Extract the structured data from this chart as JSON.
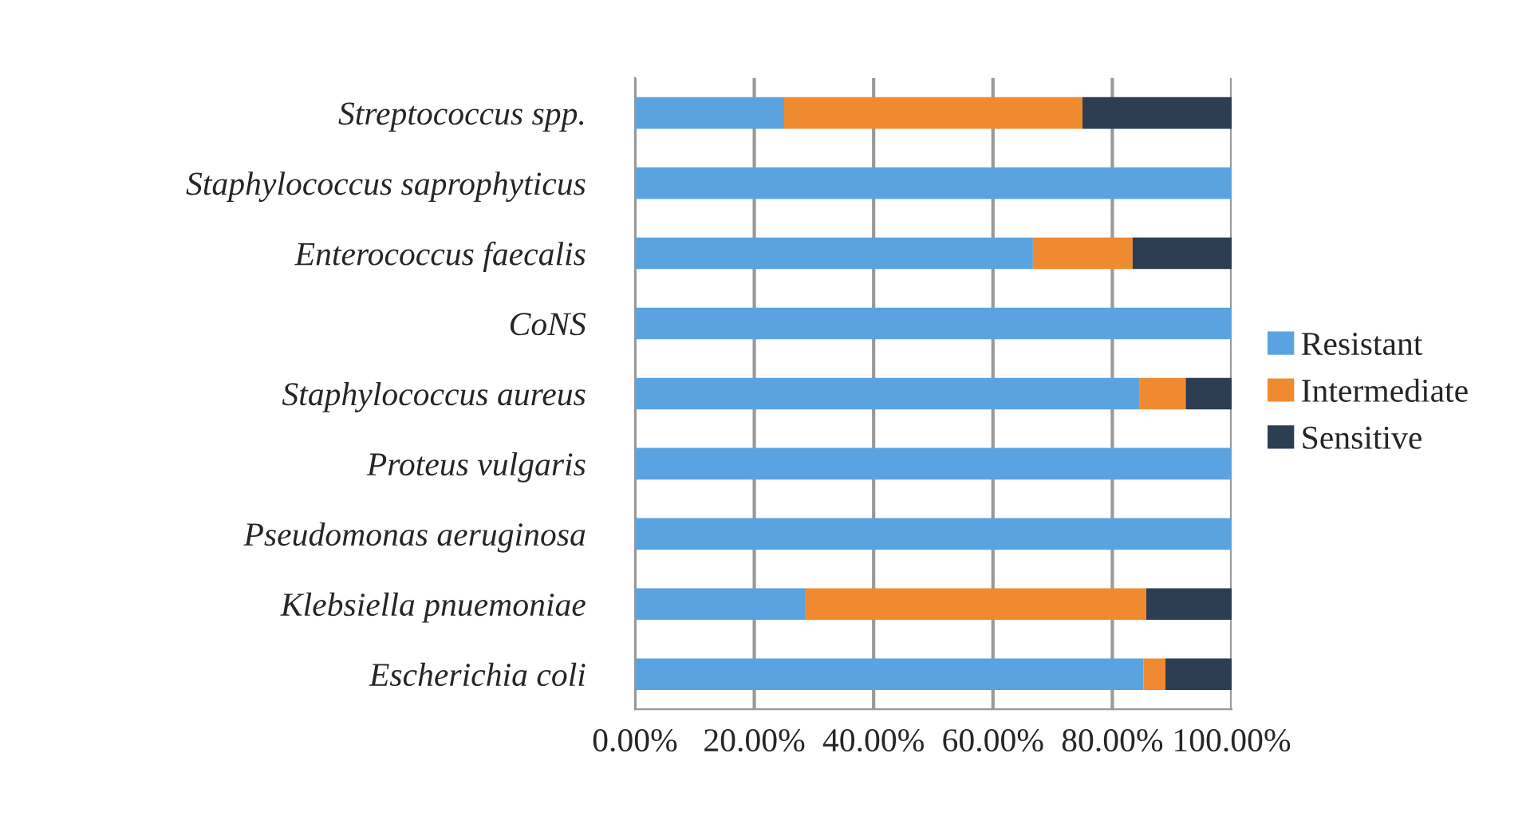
{
  "chart_data": {
    "type": "bar",
    "orientation": "horizontal",
    "stacked": true,
    "categories": [
      "Streptococcus spp.",
      "Staphylococcus saprophyticus",
      "Enterococcus faecalis",
      "CoNS",
      "Staphylococcus aureus",
      "Proteus vulgaris",
      "Pseudomonas aeruginosa",
      "Klebsiella pnuemoniae",
      "Escherichia coli"
    ],
    "series": [
      {
        "name": "Resistant",
        "color": "#5ba3e0",
        "values": [
          25,
          100,
          66.7,
          100,
          84.6,
          100,
          100,
          28.6,
          85.2
        ]
      },
      {
        "name": "Intermediate",
        "color": "#f08a30",
        "values": [
          50,
          0,
          16.7,
          0,
          7.7,
          0,
          0,
          57.1,
          3.7
        ]
      },
      {
        "name": "Sensitive",
        "color": "#2e3e52",
        "values": [
          25,
          0,
          16.6,
          0,
          7.7,
          0,
          0,
          14.3,
          11.1
        ]
      }
    ],
    "xlim": [
      0,
      100
    ],
    "xticks": [
      {
        "value": 0,
        "label": "0.00%"
      },
      {
        "value": 20,
        "label": "20.00%"
      },
      {
        "value": 40,
        "label": "40.00%"
      },
      {
        "value": 60,
        "label": "60.00%"
      },
      {
        "value": 80,
        "label": "80.00%"
      },
      {
        "value": 100,
        "label": "100.00%"
      }
    ],
    "grid": "x",
    "legend": "right"
  }
}
